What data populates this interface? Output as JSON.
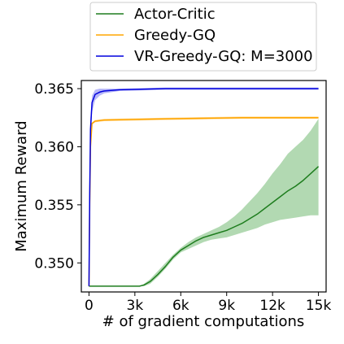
{
  "chart_data": {
    "type": "line",
    "xlabel": "# of gradient computations",
    "ylabel": "Maximum Reward",
    "xlim": [
      -500,
      15500
    ],
    "ylim": [
      0.3475,
      0.3657
    ],
    "x_ticks": [
      0,
      3000,
      6000,
      9000,
      12000,
      15000
    ],
    "x_tick_labels": [
      "0",
      "3k",
      "6k",
      "9k",
      "12k",
      "15k"
    ],
    "y_ticks": [
      0.35,
      0.355,
      0.36,
      0.365
    ],
    "y_tick_labels": [
      "0.350",
      "0.355",
      "0.360",
      "0.365"
    ],
    "grid": false,
    "legend_position": "top (above plot)",
    "series": [
      {
        "name": "Actor-Critic",
        "color": "#1e7d1e",
        "band_color": "#98cc98",
        "x": [
          0,
          3000,
          3300,
          3600,
          4000,
          4500,
          5000,
          5500,
          6000,
          6500,
          7000,
          7500,
          8000,
          8500,
          9000,
          9500,
          10000,
          10500,
          11000,
          11500,
          12000,
          12500,
          13000,
          13500,
          14000,
          14500,
          15000
        ],
        "y": [
          0.348,
          0.348,
          0.348,
          0.3481,
          0.3484,
          0.349,
          0.3497,
          0.3505,
          0.3511,
          0.3515,
          0.3519,
          0.3522,
          0.3524,
          0.3526,
          0.3528,
          0.3531,
          0.3534,
          0.3538,
          0.3542,
          0.3547,
          0.3552,
          0.3557,
          0.3562,
          0.3566,
          0.3571,
          0.3577,
          0.3583
        ],
        "lower": [
          0.348,
          0.348,
          0.348,
          0.348,
          0.3482,
          0.3488,
          0.3495,
          0.3503,
          0.3509,
          0.3512,
          0.3515,
          0.3518,
          0.352,
          0.3521,
          0.3522,
          0.3524,
          0.3526,
          0.3528,
          0.353,
          0.3533,
          0.3535,
          0.3537,
          0.3538,
          0.3539,
          0.354,
          0.3541,
          0.3541
        ],
        "upper": [
          0.348,
          0.348,
          0.348,
          0.3482,
          0.3486,
          0.3493,
          0.35,
          0.3507,
          0.3513,
          0.3518,
          0.3522,
          0.3525,
          0.3528,
          0.3531,
          0.3535,
          0.354,
          0.3546,
          0.3553,
          0.356,
          0.3568,
          0.3577,
          0.3585,
          0.3594,
          0.36,
          0.3606,
          0.3614,
          0.3624
        ]
      },
      {
        "name": "Greedy-GQ",
        "color": "#ffa500",
        "band_color": "#ffd27f",
        "x": [
          0,
          50,
          100,
          200,
          400,
          1000,
          5000,
          10000,
          15000
        ],
        "y": [
          0.348,
          0.355,
          0.36,
          0.362,
          0.3622,
          0.3623,
          0.3624,
          0.3625,
          0.3625
        ],
        "lower": [
          0.348,
          0.355,
          0.3599,
          0.3619,
          0.3621,
          0.3622,
          0.3623,
          0.3624,
          0.3624
        ],
        "upper": [
          0.348,
          0.355,
          0.3601,
          0.3621,
          0.3623,
          0.3624,
          0.3625,
          0.3626,
          0.3626
        ]
      },
      {
        "name": "VR-Greedy-GQ: M=3000",
        "color": "#0000dd",
        "band_color": "#9f9ff5",
        "x": [
          0,
          50,
          100,
          200,
          400,
          700,
          1000,
          2000,
          5000,
          10000,
          15000
        ],
        "y": [
          0.348,
          0.356,
          0.3615,
          0.3638,
          0.3645,
          0.3647,
          0.3648,
          0.3649,
          0.365,
          0.365,
          0.365
        ],
        "lower": [
          0.348,
          0.355,
          0.3605,
          0.363,
          0.364,
          0.3644,
          0.3646,
          0.3648,
          0.3649,
          0.3649,
          0.3649
        ],
        "upper": [
          0.348,
          0.357,
          0.3625,
          0.3644,
          0.3649,
          0.365,
          0.365,
          0.365,
          0.3651,
          0.3651,
          0.3651
        ]
      }
    ]
  }
}
